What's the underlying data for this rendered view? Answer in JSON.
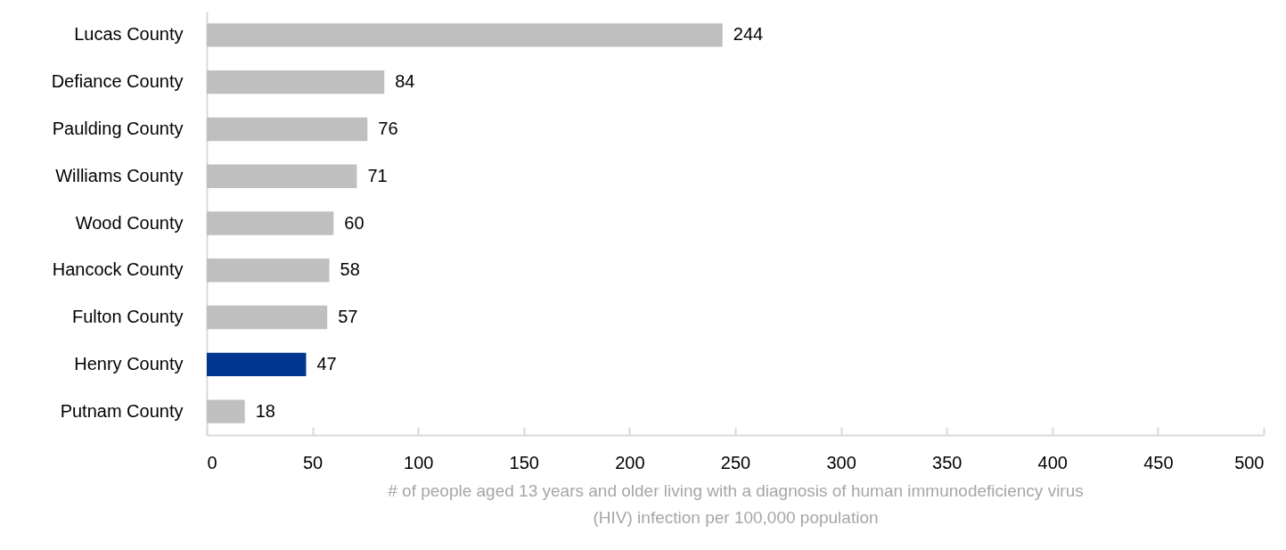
{
  "chart_data": {
    "type": "bar",
    "orientation": "horizontal",
    "categories": [
      "Lucas County",
      "Defiance County",
      "Paulding County",
      "Williams County",
      "Wood County",
      "Hancock County",
      "Fulton County",
      "Henry County",
      "Putnam County"
    ],
    "values": [
      244,
      84,
      76,
      71,
      60,
      58,
      57,
      47,
      18
    ],
    "colors": [
      "#bfbfbf",
      "#bfbfbf",
      "#bfbfbf",
      "#bfbfbf",
      "#bfbfbf",
      "#bfbfbf",
      "#bfbfbf",
      "#003591",
      "#bfbfbf"
    ],
    "xlim": [
      0,
      500
    ],
    "xticks": [
      0,
      50,
      100,
      150,
      200,
      250,
      300,
      350,
      400,
      450,
      500
    ],
    "xlabel": "# of people aged 13 years and older living with a diagnosis of human immunodeficiency virus (HIV) infection per 100,000 population",
    "data_labels": true
  }
}
